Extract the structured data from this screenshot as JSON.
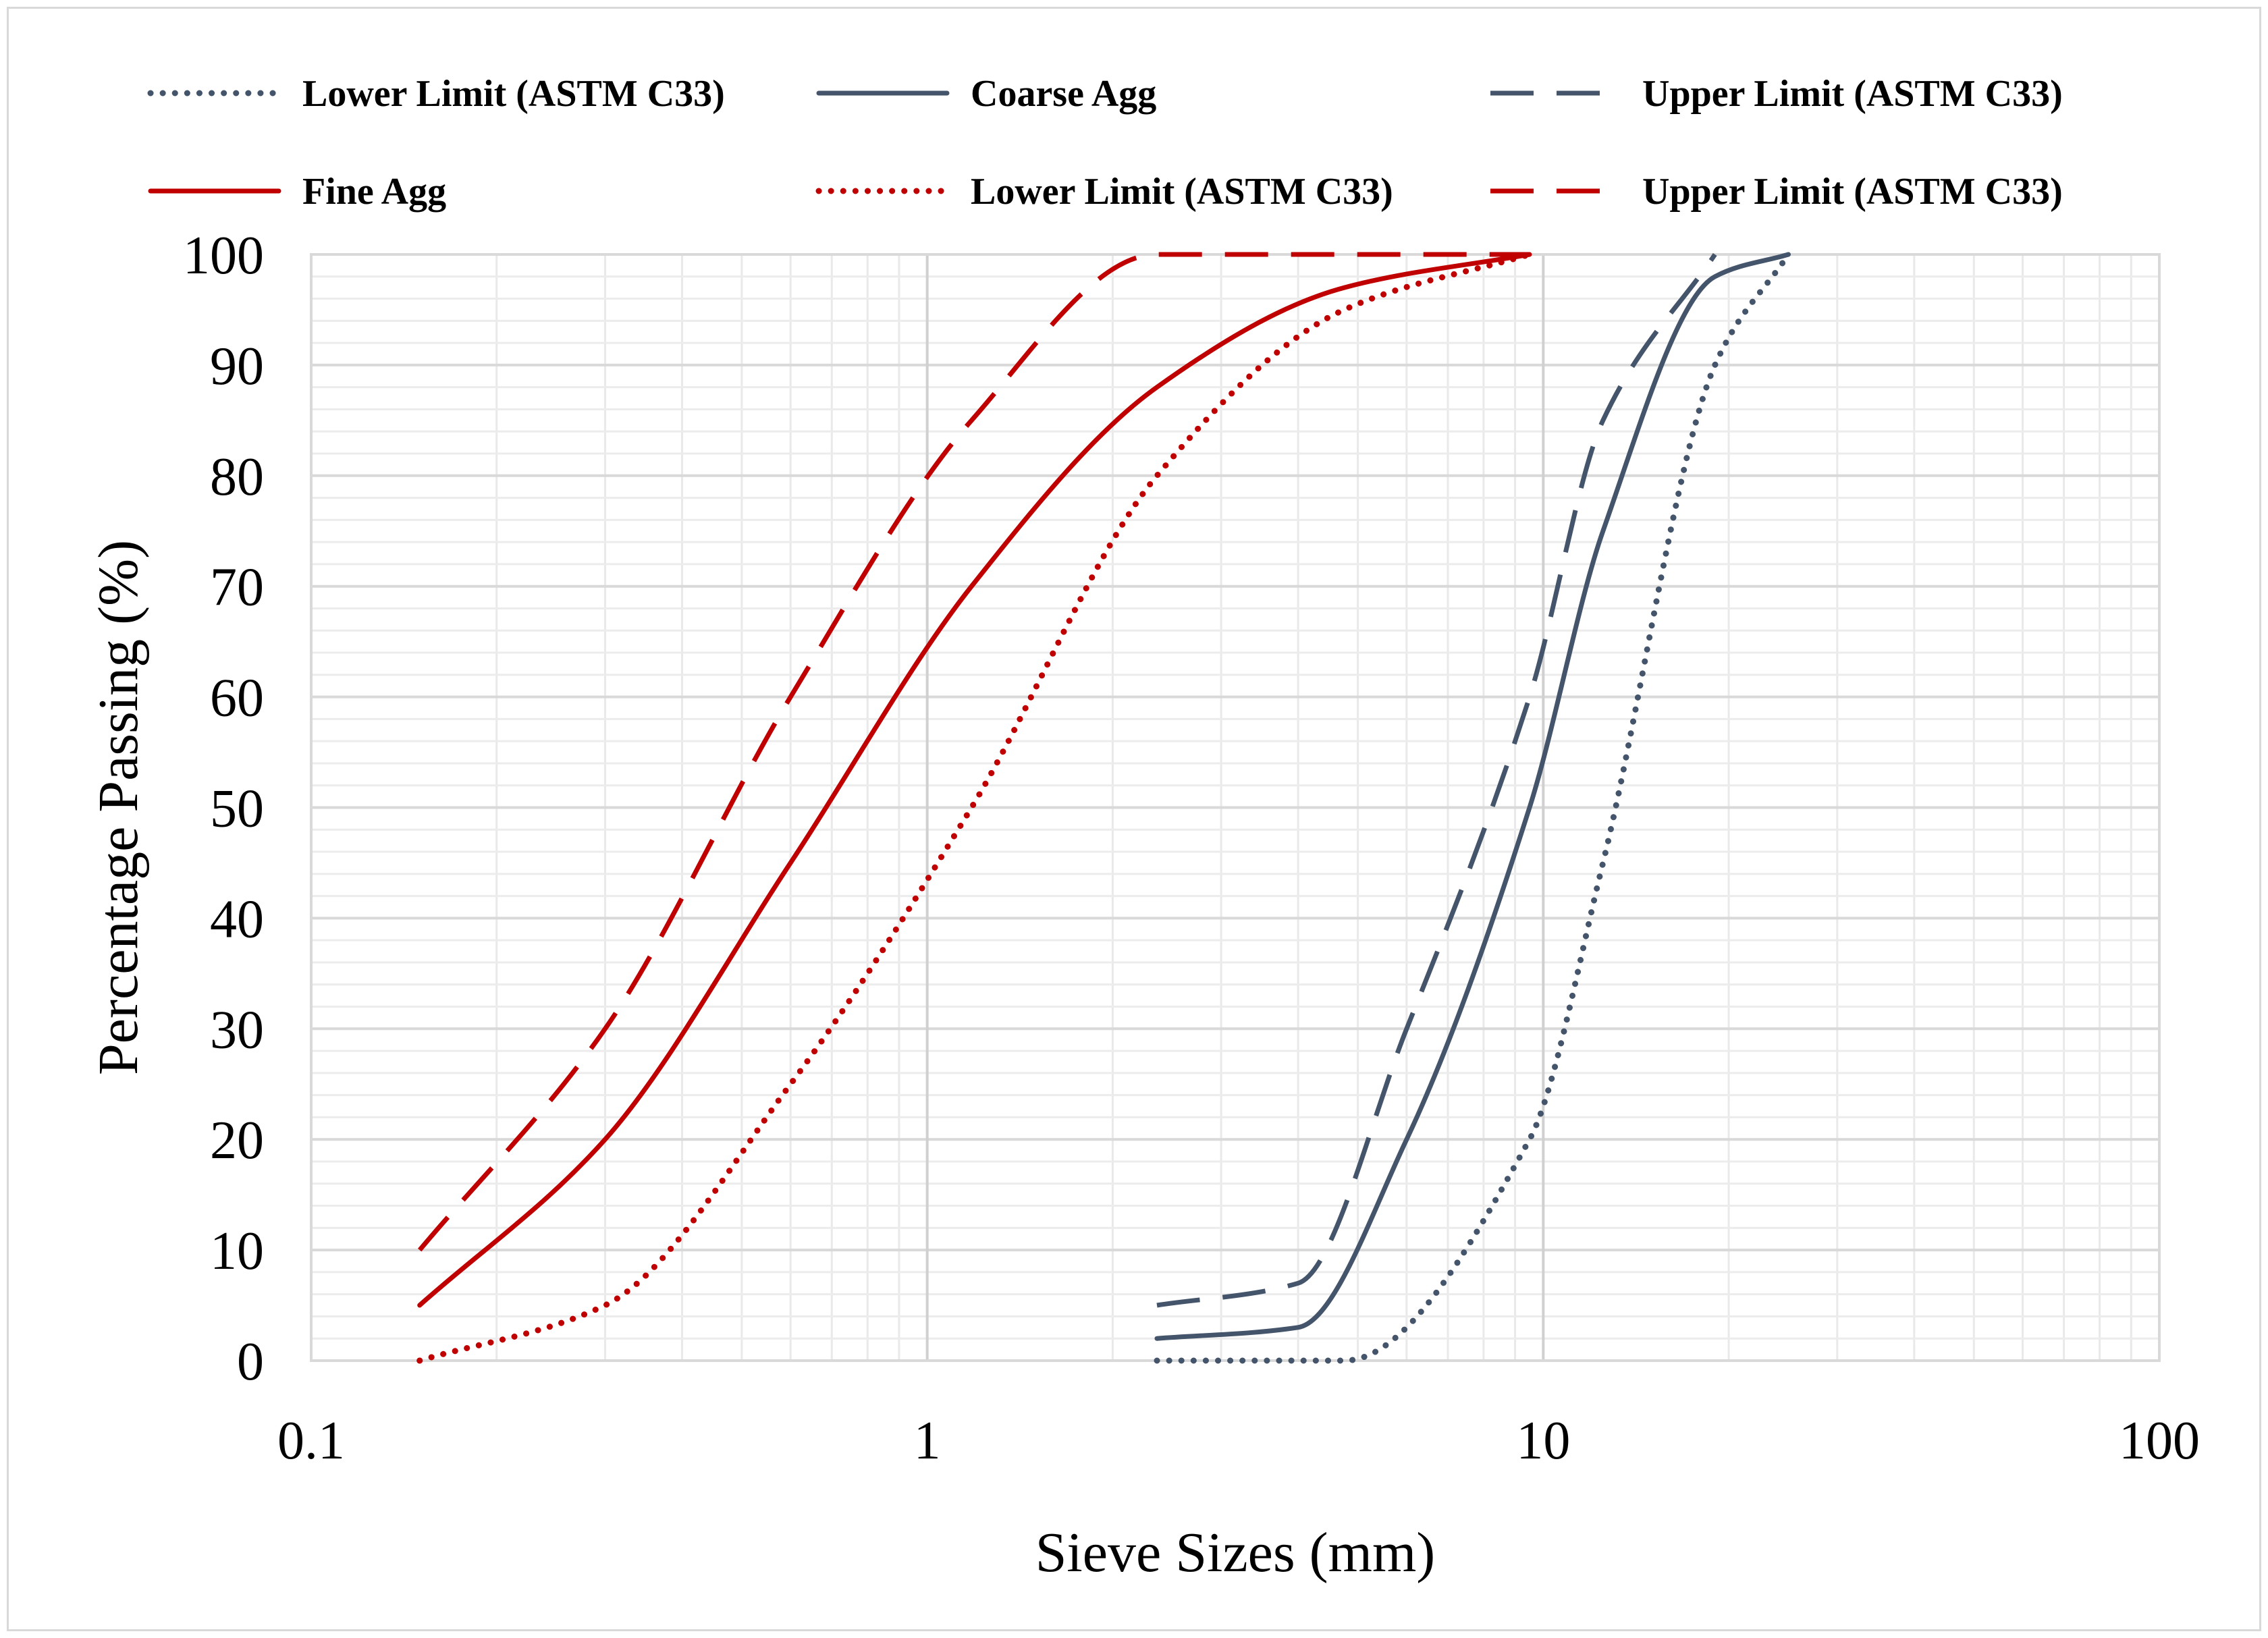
{
  "chart_data": {
    "type": "line",
    "title": "",
    "xlabel": "Sieve Sizes (mm)",
    "ylabel": "Percentage Passing (%)",
    "xscale": "log",
    "xlim": [
      0.1,
      100
    ],
    "ylim": [
      0,
      100
    ],
    "xticks": [
      0.1,
      1,
      10,
      100
    ],
    "xtick_labels": [
      "0.1",
      "1",
      "10",
      "100"
    ],
    "yticks": [
      0,
      10,
      20,
      30,
      40,
      50,
      60,
      70,
      80,
      90,
      100
    ],
    "ytick_labels": [
      "0",
      "10",
      "20",
      "30",
      "40",
      "50",
      "60",
      "70",
      "80",
      "90",
      "100"
    ],
    "grid": true,
    "legend_position": "top",
    "series": [
      {
        "name": "Lower Limit (ASTM C33)",
        "group": "coarse",
        "style": "dotted",
        "color": "#44546a",
        "x": [
          2.36,
          4.75,
          9.5,
          12.5,
          19,
          25
        ],
        "y": [
          0,
          0,
          20,
          45,
          90,
          100
        ]
      },
      {
        "name": "Coarse Agg",
        "group": "coarse",
        "style": "solid",
        "color": "#44546a",
        "x": [
          2.36,
          4.0,
          6.0,
          9.5,
          12.5,
          19,
          25
        ],
        "y": [
          2,
          3,
          20,
          50,
          75,
          98,
          100
        ]
      },
      {
        "name": "Upper Limit (ASTM C33)",
        "group": "coarse",
        "style": "dashed",
        "color": "#44546a",
        "x": [
          2.36,
          4.0,
          6.0,
          9.5,
          12.5,
          19
        ],
        "y": [
          5,
          7,
          30,
          60,
          85,
          100
        ]
      },
      {
        "name": "Fine Agg",
        "group": "fine",
        "style": "solid",
        "color": "#c00000",
        "x": [
          0.15,
          0.3,
          0.6,
          1.18,
          2.36,
          4.75,
          9.5
        ],
        "y": [
          5,
          20,
          45,
          70,
          88,
          97,
          100
        ]
      },
      {
        "name": "Lower Limit (ASTM C33)",
        "group": "fine",
        "style": "dotted",
        "color": "#c00000",
        "x": [
          0.15,
          0.3,
          0.6,
          1.18,
          2.36,
          4.75,
          9.5
        ],
        "y": [
          0,
          5,
          25,
          50,
          80,
          95,
          100
        ]
      },
      {
        "name": "Upper Limit (ASTM C33)",
        "group": "fine",
        "style": "dashed",
        "color": "#c00000",
        "x": [
          0.15,
          0.3,
          0.6,
          1.18,
          2.36,
          4.75,
          9.5
        ],
        "y": [
          10,
          30,
          60,
          85,
          100,
          100,
          100
        ]
      }
    ]
  }
}
